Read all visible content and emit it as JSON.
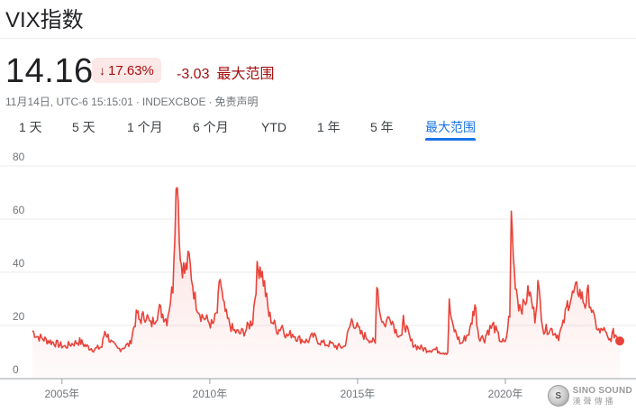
{
  "header": {
    "title": "VIX指数",
    "price": "14.16",
    "change_pct": "17.63%",
    "change_abs": "-3.03",
    "change_period": "最大范围",
    "timestamp": "11月14日, UTC-6 15:15:01",
    "exchange": "INDEXCBOE",
    "disclaimer": "免责声明",
    "negative_color": "#a50e0e",
    "badge_bg": "#fce8e6"
  },
  "tabs": [
    {
      "label": "1 天"
    },
    {
      "label": "5 天"
    },
    {
      "label": "1 个月"
    },
    {
      "label": "6 个月"
    },
    {
      "label": "YTD"
    },
    {
      "label": "1 年"
    },
    {
      "label": "5 年"
    },
    {
      "label": "最大范围",
      "active": true
    }
  ],
  "watermark": {
    "en": "SINO SOUND",
    "cn": "漢聲傳播"
  },
  "chart_data": {
    "type": "line",
    "series_color": "#e8433a",
    "fill": true,
    "grid": true,
    "ylim": [
      0,
      80
    ],
    "yticks": [
      0,
      20,
      40,
      60,
      80
    ],
    "xlim": [
      2004.0,
      2023.87
    ],
    "xticks": [
      {
        "value": 2005,
        "label": "2005年"
      },
      {
        "value": 2010,
        "label": "2010年"
      },
      {
        "value": 2015,
        "label": "2015年"
      },
      {
        "value": 2020,
        "label": "2020年"
      }
    ],
    "x": [
      2004.0,
      2004.15,
      2004.35,
      2004.6,
      2004.85,
      2005.1,
      2005.3,
      2005.6,
      2005.85,
      2006.1,
      2006.35,
      2006.45,
      2006.7,
      2006.9,
      2007.1,
      2007.3,
      2007.55,
      2007.6,
      2007.85,
      2008.0,
      2008.3,
      2008.55,
      2008.75,
      2008.82,
      2008.9,
      2009.0,
      2009.15,
      2009.3,
      2009.5,
      2009.7,
      2009.9,
      2010.1,
      2010.25,
      2010.35,
      2010.45,
      2010.6,
      2010.8,
      2011.0,
      2011.2,
      2011.45,
      2011.6,
      2011.7,
      2011.85,
      2012.0,
      2012.3,
      2012.45,
      2012.6,
      2012.8,
      2013.0,
      2013.3,
      2013.5,
      2013.7,
      2013.9,
      2014.1,
      2014.3,
      2014.55,
      2014.8,
      2014.95,
      2015.1,
      2015.4,
      2015.6,
      2015.65,
      2015.75,
      2015.9,
      2016.1,
      2016.3,
      2016.5,
      2016.55,
      2016.8,
      2017.0,
      2017.3,
      2017.6,
      2017.9,
      2018.05,
      2018.1,
      2018.2,
      2018.5,
      2018.8,
      2018.97,
      2019.1,
      2019.3,
      2019.4,
      2019.6,
      2019.8,
      2020.0,
      2020.15,
      2020.2,
      2020.3,
      2020.45,
      2020.6,
      2020.8,
      2021.0,
      2021.1,
      2021.3,
      2021.5,
      2021.8,
      2021.95,
      2022.1,
      2022.2,
      2022.45,
      2022.7,
      2022.8,
      2023.0,
      2023.2,
      2023.3,
      2023.5,
      2023.65,
      2023.78,
      2023.87
    ],
    "y": [
      18,
      16,
      15,
      14,
      13,
      12,
      13,
      14,
      12,
      11,
      12,
      18,
      13,
      11,
      12,
      13,
      25,
      22,
      24,
      20,
      26,
      22,
      35,
      60,
      79,
      45,
      40,
      45,
      30,
      24,
      22,
      20,
      25,
      38,
      28,
      22,
      18,
      17,
      18,
      22,
      40,
      43,
      35,
      24,
      18,
      20,
      16,
      17,
      15,
      14,
      16,
      14,
      13,
      13,
      12,
      12,
      22,
      20,
      17,
      15,
      13,
      38,
      25,
      20,
      24,
      18,
      16,
      22,
      14,
      12,
      11,
      11,
      10,
      10,
      28,
      20,
      13,
      18,
      28,
      16,
      15,
      18,
      20,
      15,
      13,
      25,
      62,
      40,
      28,
      27,
      33,
      23,
      35,
      18,
      19,
      16,
      20,
      28,
      30,
      34,
      28,
      32,
      22,
      17,
      19,
      14,
      17,
      16,
      14
    ],
    "current_point": {
      "x": 2023.87,
      "y": 14.16
    }
  }
}
